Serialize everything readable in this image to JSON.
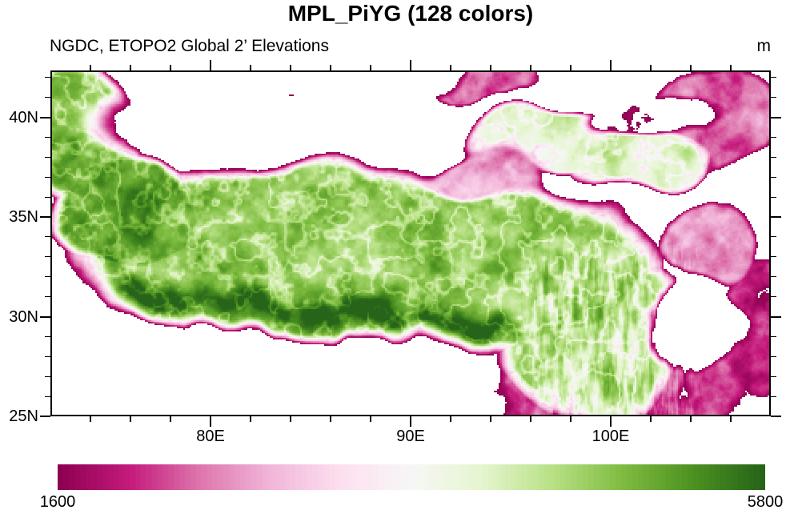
{
  "figure": {
    "title": "MPL_PiYG (128 colors)",
    "subtitle_left": "NGDC, ETOPO2 Global 2’ Elevations",
    "units_right": "m"
  },
  "map": {
    "depicts": "ETOPO2 2-minute elevation raster of the Tibetan Plateau region; cells below the colorbar minimum (1600 m) are drawn white",
    "extent": {
      "lon_min": 72,
      "lon_max": 108,
      "lat_min": 25,
      "lat_max": 42.35
    },
    "x_axis": {
      "major_ticks": [
        {
          "value": 80,
          "label": "80E"
        },
        {
          "value": 90,
          "label": "90E"
        },
        {
          "value": 100,
          "label": "100E"
        }
      ],
      "minor_step_deg": 2
    },
    "y_axis": {
      "major_ticks": [
        {
          "value": 40,
          "label": "40N"
        },
        {
          "value": 35,
          "label": "35N"
        },
        {
          "value": 30,
          "label": "30N"
        },
        {
          "value": 25,
          "label": "25N"
        }
      ],
      "minor_step_deg": 1
    }
  },
  "colorbar": {
    "colormap": "MPL_PiYG",
    "n_colors": 128,
    "min_value": 1600,
    "max_value": 5800,
    "min_label": "1600",
    "max_label": "5800",
    "stops": [
      "#8E0152",
      "#C51B7D",
      "#DE77AE",
      "#F1B6DA",
      "#FDE0EF",
      "#F7F7F7",
      "#E6F5D0",
      "#B8E186",
      "#7FBC41",
      "#4D9221",
      "#276419"
    ]
  },
  "colors": {
    "background": "#FFFFFF",
    "frame": "#000000",
    "text": "#000000",
    "below_min": "#FFFFFF"
  }
}
